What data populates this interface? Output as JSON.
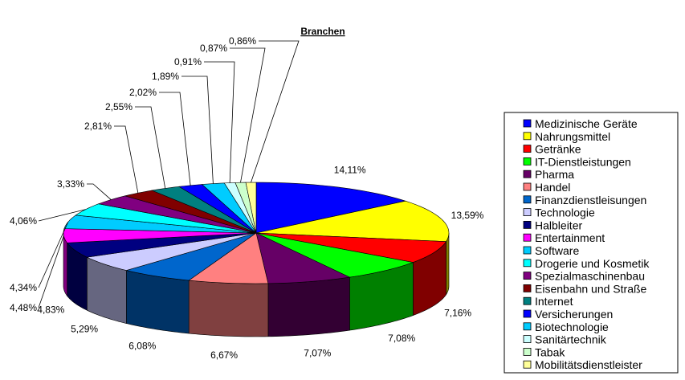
{
  "chart_data": {
    "type": "pie",
    "title": "Branchen",
    "legend_position": "right",
    "slices": [
      {
        "name": "Medizinische Geräte",
        "value_label": "14,11%",
        "value": 14.11,
        "color": "#0000ff"
      },
      {
        "name": "Nahrungsmittel",
        "value_label": "13,59%",
        "value": 13.59,
        "color": "#ffff00"
      },
      {
        "name": "Getränke",
        "value_label": "7,16%",
        "value": 7.16,
        "color": "#ff0000"
      },
      {
        "name": "IT-Dienstleistungen",
        "value_label": "7,08%",
        "value": 7.08,
        "color": "#00ff00"
      },
      {
        "name": "Pharma",
        "value_label": "7,07%",
        "value": 7.07,
        "color": "#660066"
      },
      {
        "name": "Handel",
        "value_label": "6,67%",
        "value": 6.67,
        "color": "#ff8080"
      },
      {
        "name": "Finanzdienstleisungen",
        "value_label": "6,08%",
        "value": 6.08,
        "color": "#0066cc"
      },
      {
        "name": "Technologie",
        "value_label": "5,29%",
        "value": 5.29,
        "color": "#ccccff"
      },
      {
        "name": "Halbleiter",
        "value_label": "4,83%",
        "value": 4.83,
        "color": "#000080"
      },
      {
        "name": "Entertainment",
        "value_label": "4,48%",
        "value": 4.48,
        "color": "#ff00ff"
      },
      {
        "name": "Software",
        "value_label": "4,34%",
        "value": 4.34,
        "color": "#00ccff"
      },
      {
        "name": "Drogerie und Kosmetik",
        "value_label": "4,06%",
        "value": 4.06,
        "color": "#00ffff"
      },
      {
        "name": "Spezialmaschinenbau",
        "value_label": "3,33%",
        "value": 3.33,
        "color": "#800080"
      },
      {
        "name": "Eisenbahn und Straße",
        "value_label": "2,81%",
        "value": 2.81,
        "color": "#800000"
      },
      {
        "name": "Internet",
        "value_label": "2,55%",
        "value": 2.55,
        "color": "#008080"
      },
      {
        "name": "Versicherungen",
        "value_label": "2,02%",
        "value": 2.02,
        "color": "#0000ff"
      },
      {
        "name": "Biotechnologie",
        "value_label": "1,89%",
        "value": 1.89,
        "color": "#00ccff"
      },
      {
        "name": "Sanitärtechnik",
        "value_label": "0,91%",
        "value": 0.91,
        "color": "#ccffff"
      },
      {
        "name": "Tabak",
        "value_label": "0,87%",
        "value": 0.87,
        "color": "#ccffcc"
      },
      {
        "name": "Mobilitätsdienstleister",
        "value_label": "0,86%",
        "value": 0.86,
        "color": "#ffff99"
      }
    ]
  }
}
